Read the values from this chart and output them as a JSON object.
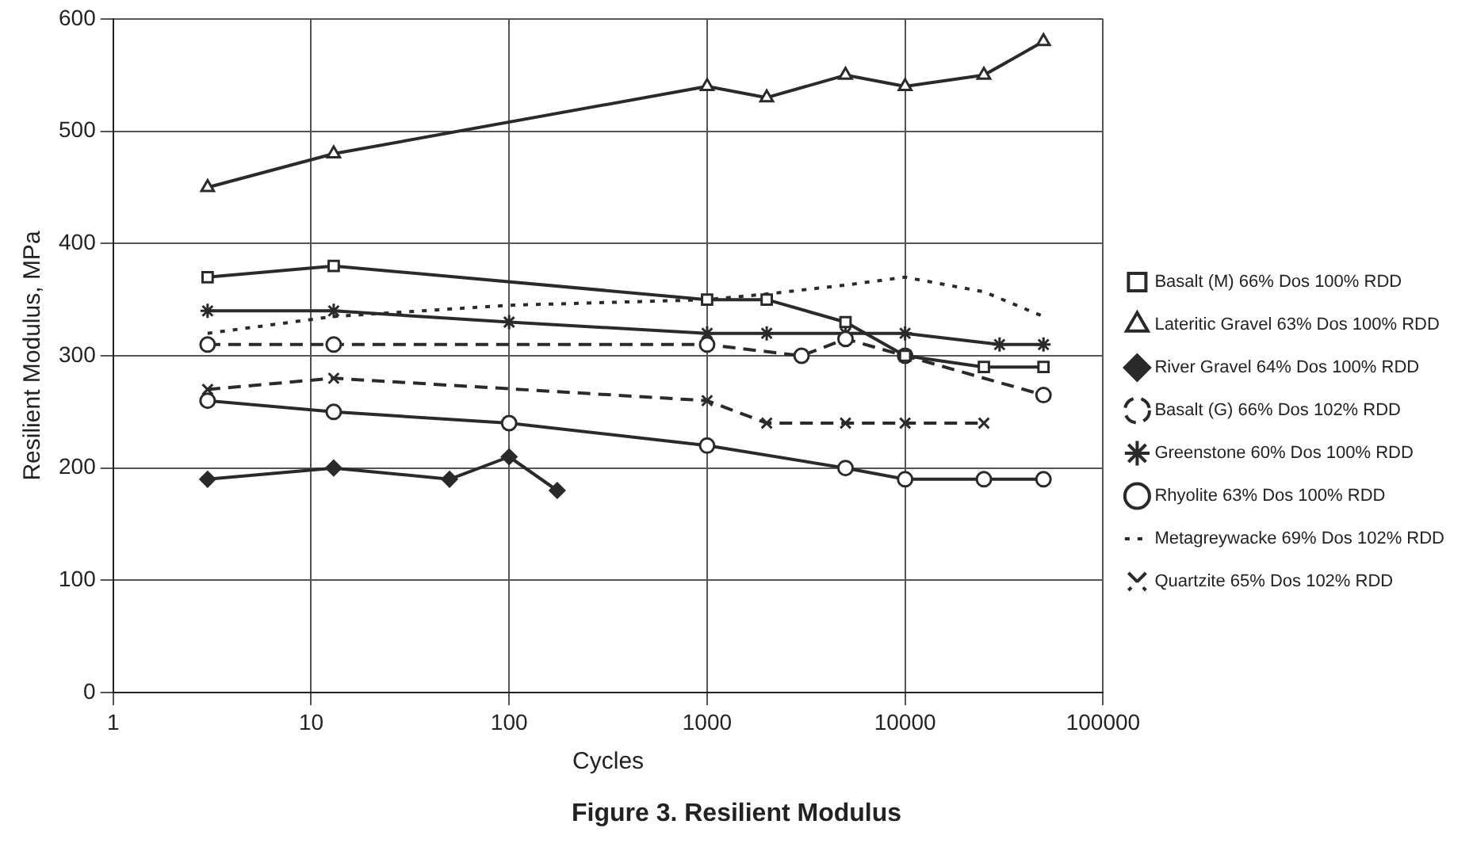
{
  "chart_data": {
    "type": "line",
    "title": "Figure 3. Resilient Modulus",
    "xlabel": "Cycles",
    "ylabel": "Resilient Modulus, MPa",
    "log": "x",
    "xlim": [
      1,
      100000
    ],
    "xticks": [
      1,
      10,
      100,
      1000,
      10000,
      100000
    ],
    "ylim": [
      0,
      600
    ],
    "yticks": [
      0,
      100,
      200,
      300,
      400,
      500,
      600
    ],
    "grid": true,
    "legend": "right",
    "series": [
      {
        "name": "Basalt (M) 66% Dos 100% RDD",
        "color": "#2a2a2a",
        "marker": "square",
        "line_style": "solid",
        "x": [
          3,
          13,
          1000,
          2000,
          5000,
          10000,
          25000,
          50000
        ],
        "values": [
          370,
          380,
          350,
          350,
          330,
          300,
          290,
          290
        ]
      },
      {
        "name": "Lateritic Gravel 63% Dos 100% RDD",
        "color": "#2a2a2a",
        "marker": "triangle",
        "line_style": "solid",
        "x": [
          3,
          13,
          1000,
          2000,
          5000,
          10000,
          25000,
          50000
        ],
        "values": [
          450,
          480,
          540,
          530,
          550,
          540,
          550,
          580
        ]
      },
      {
        "name": "River Gravel 64% Dos 100% RDD",
        "color": "#2a2a2a",
        "marker": "diamond",
        "line_style": "solid",
        "x": [
          3,
          13,
          50,
          100,
          175
        ],
        "values": [
          190,
          200,
          190,
          210,
          180
        ]
      },
      {
        "name": "Basalt (G) 66% Dos 102% RDD",
        "color": "#2a2a2a",
        "marker": "circle",
        "line_style": "dashed",
        "x": [
          3,
          13,
          1000,
          3000,
          5000,
          10000,
          50000
        ],
        "values": [
          310,
          310,
          310,
          300,
          315,
          300,
          265
        ]
      },
      {
        "name": "Greenstone 60% Dos 100% RDD",
        "color": "#2a2a2a",
        "marker": "cross",
        "line_style": "solid",
        "x": [
          3,
          13,
          100,
          1000,
          2000,
          5000,
          10000,
          30000,
          50000
        ],
        "values": [
          340,
          340,
          330,
          320,
          320,
          320,
          320,
          310,
          310
        ]
      },
      {
        "name": "Rhyolite 63% Dos 100% RDD",
        "color": "#2a2a2a",
        "marker": "circle",
        "line_style": "solid",
        "x": [
          3,
          13,
          100,
          1000,
          5000,
          10000,
          25000,
          50000
        ],
        "values": [
          260,
          250,
          240,
          220,
          200,
          190,
          190,
          190
        ]
      },
      {
        "name": "Metagreywacke 69% Dos 102% RDD",
        "color": "#2a2a2a",
        "marker": "none",
        "line_style": "dotted",
        "x": [
          3,
          13,
          100,
          1000,
          2000,
          5000,
          10000,
          25000,
          50000
        ],
        "values": [
          320,
          335,
          345,
          350,
          355,
          363,
          370,
          357,
          335
        ]
      },
      {
        "name": "Quartzite 65% Dos 102% RDD",
        "color": "#2a2a2a",
        "marker": "cross",
        "line_style": "dashed",
        "x": [
          3,
          13,
          1000,
          2000,
          5000,
          10000,
          25000
        ],
        "values": [
          270,
          280,
          260,
          240,
          240,
          240,
          240
        ]
      }
    ]
  }
}
